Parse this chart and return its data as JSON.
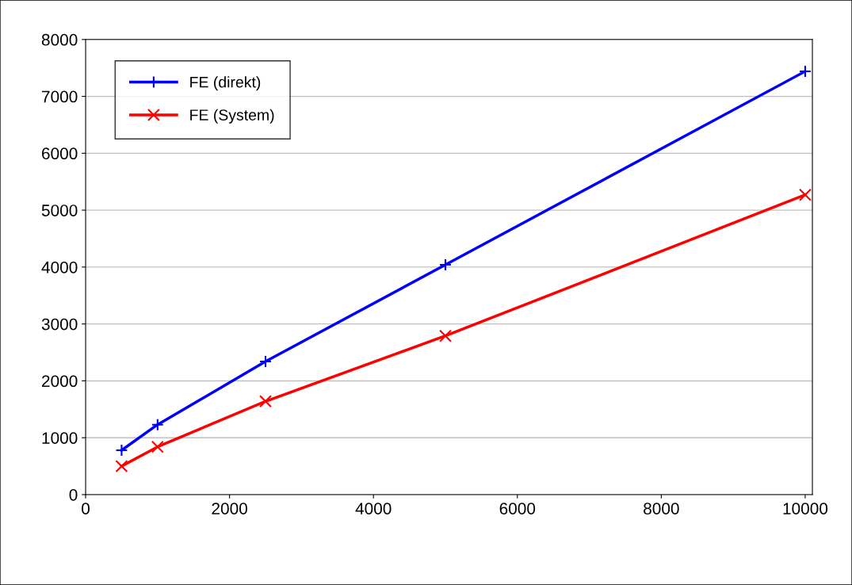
{
  "chart_data": {
    "type": "line",
    "x": [
      500,
      1000,
      2500,
      5000,
      10000
    ],
    "series": [
      {
        "name": "FE (direkt)",
        "color": "#0000ff",
        "marker": "plus",
        "values": [
          780,
          1230,
          2340,
          4040,
          7440
        ]
      },
      {
        "name": "FE (System)",
        "color": "#ff0000",
        "marker": "cross",
        "values": [
          500,
          840,
          1640,
          2790,
          5270
        ]
      }
    ],
    "xlim": [
      0,
      10100
    ],
    "xticks": [
      0,
      2000,
      4000,
      6000,
      8000,
      10000
    ],
    "ylim": [
      0,
      8000
    ],
    "yticks": [
      0,
      1000,
      2000,
      3000,
      4000,
      5000,
      6000,
      7000,
      8000
    ],
    "grid": "y",
    "legend": "top left",
    "line_style": "solid"
  }
}
